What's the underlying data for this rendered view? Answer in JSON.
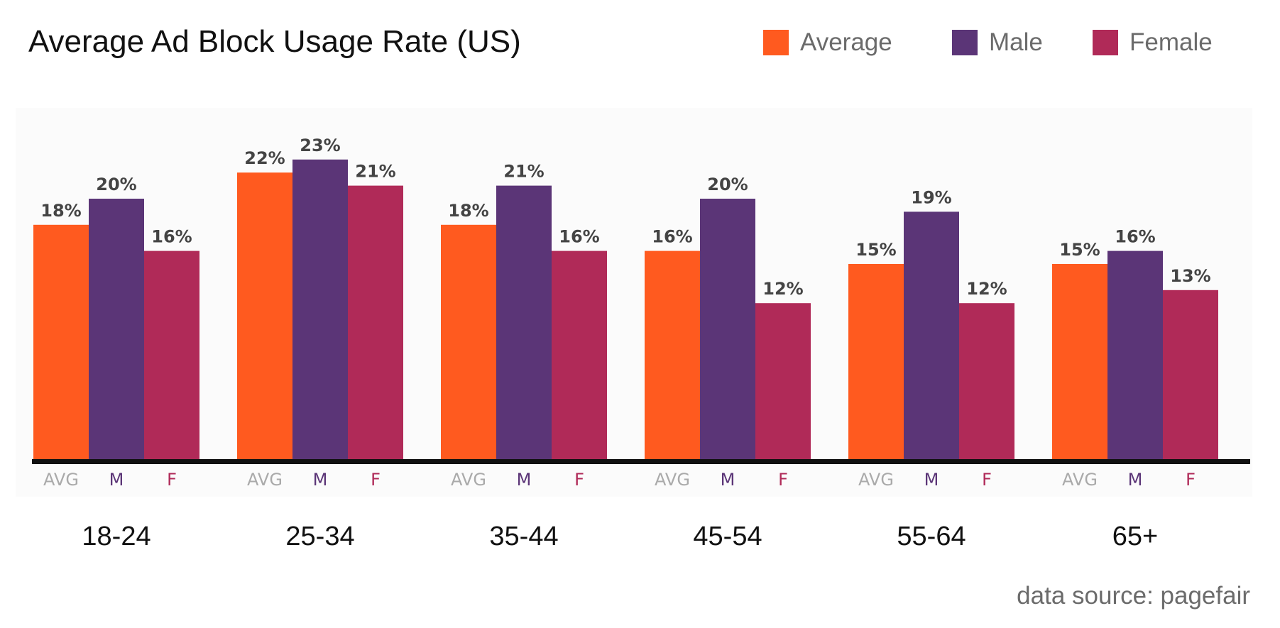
{
  "chart_data": {
    "type": "bar",
    "title": "Average Ad Block Usage Rate (US)",
    "source": "data source: pagefair",
    "categories": [
      "18-24",
      "25-34",
      "35-44",
      "45-54",
      "55-64",
      "65+"
    ],
    "bar_labels": [
      "AVG",
      "M",
      "F"
    ],
    "series": [
      {
        "name": "Average",
        "color": "#FF5A1F",
        "values": [
          18,
          22,
          18,
          16,
          15,
          15
        ]
      },
      {
        "name": "Male",
        "color": "#5B3577",
        "values": [
          20,
          23,
          21,
          20,
          19,
          16
        ]
      },
      {
        "name": "Female",
        "color": "#B02A58",
        "values": [
          16,
          21,
          16,
          12,
          12,
          13
        ]
      }
    ],
    "bar_label_colors": [
      "#AAAAAA",
      "#5B3577",
      "#B02A58"
    ],
    "value_suffix": "%",
    "ylim": [
      0,
      25
    ],
    "grid": false,
    "legend_position": "top-right"
  }
}
